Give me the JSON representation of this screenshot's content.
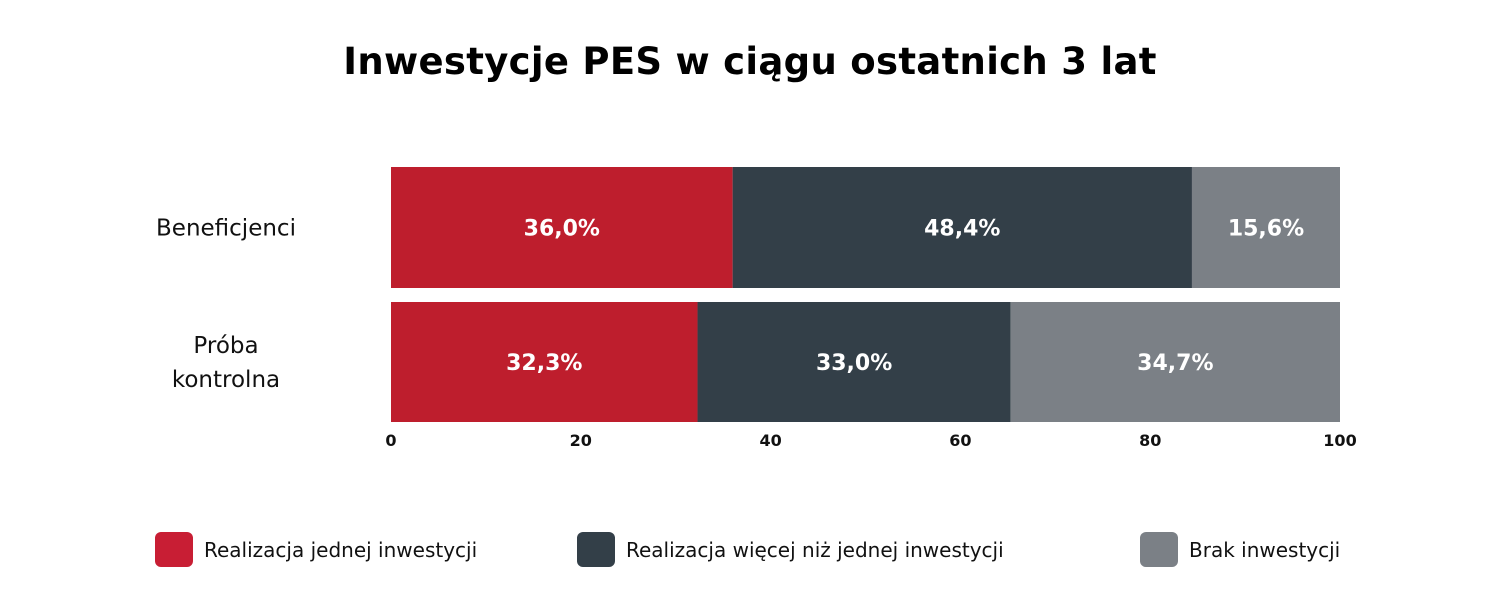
{
  "chart_data": {
    "type": "bar",
    "orientation": "horizontal",
    "stacked": true,
    "title": "Inwestycje PES w ciągu ostatnich 3 lat",
    "categories": [
      "Beneficjenci",
      "Próba kontrolna"
    ],
    "series": [
      {
        "name": "Realizacja jednej inwestycji",
        "color": "#be1e2d",
        "values": [
          36.0,
          32.3
        ],
        "labels": [
          "36,0%",
          "32,3%"
        ]
      },
      {
        "name": "Realizacja więcej niż jednej inwestycji",
        "color": "#333f48",
        "values": [
          48.4,
          33.0
        ],
        "labels": [
          "48,4%",
          "33,0%"
        ]
      },
      {
        "name": "Brak inwestycji",
        "color": "#7b8086",
        "values": [
          15.6,
          34.7
        ],
        "labels": [
          "15,6%",
          "34,7%"
        ]
      }
    ],
    "xlim": [
      0,
      100
    ],
    "xticks": [
      "0",
      "20",
      "40",
      "60",
      "80",
      "100"
    ],
    "grid": false,
    "legend_position": "bottom"
  }
}
